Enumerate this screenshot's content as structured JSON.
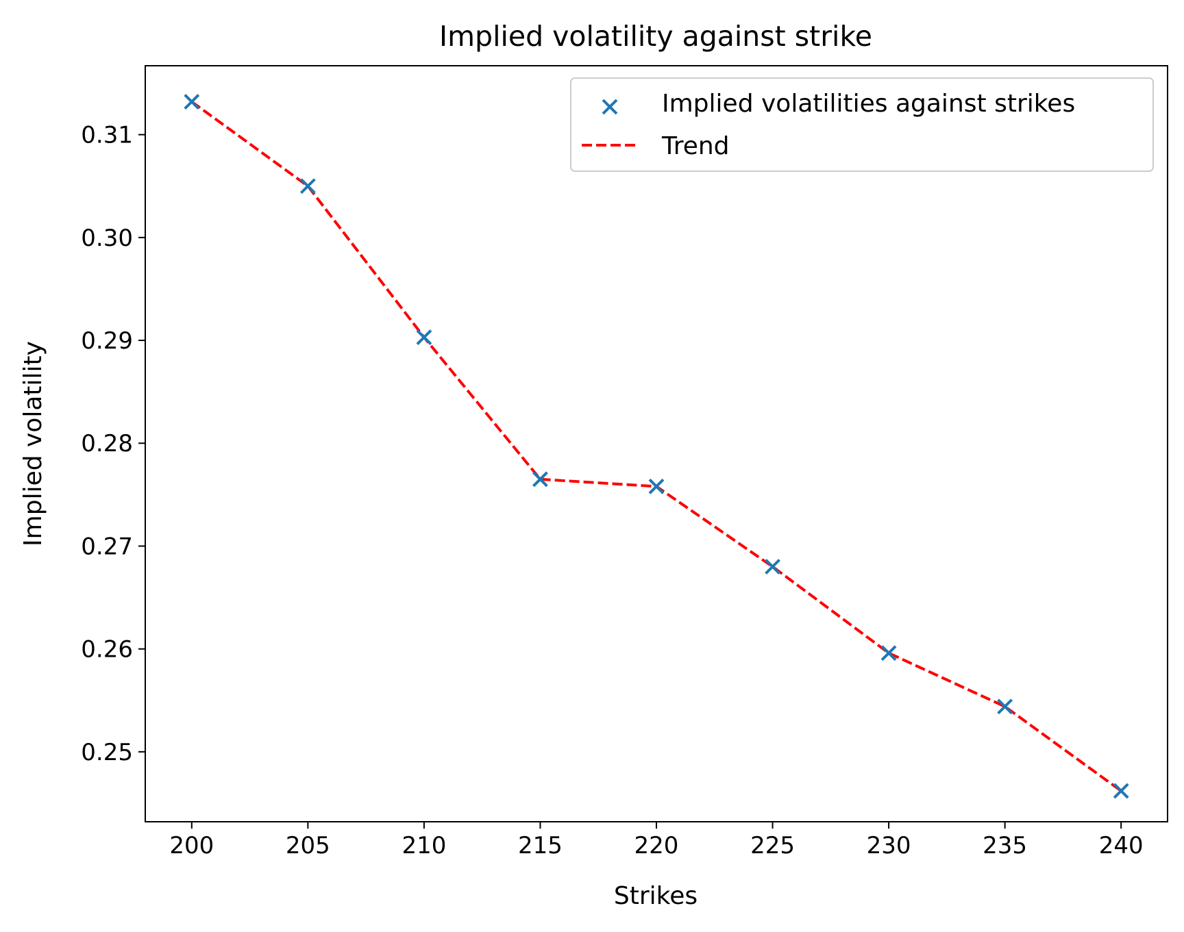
{
  "chart_data": {
    "type": "scatter",
    "title": "Implied volatility against strike",
    "xlabel": "Strikes",
    "ylabel": "Implied volatility",
    "xlim": [
      198,
      242
    ],
    "ylim": [
      0.2432,
      0.3167
    ],
    "xticks": [
      "200",
      "205",
      "210",
      "215",
      "220",
      "225",
      "230",
      "235",
      "240"
    ],
    "yticks": [
      "0.25",
      "0.26",
      "0.27",
      "0.28",
      "0.29",
      "0.30",
      "0.31"
    ],
    "grid": false,
    "legend_position": "top-right",
    "x": [
      200,
      205,
      210,
      215,
      220,
      225,
      230,
      235,
      240
    ],
    "series": [
      {
        "name": "Implied volatilities against strikes",
        "type": "scatter",
        "marker": "x",
        "color": "#1f77b4",
        "values": [
          0.3132,
          0.305,
          0.2903,
          0.2765,
          0.2758,
          0.268,
          0.2596,
          0.2544,
          0.2462
        ]
      },
      {
        "name": "Trend",
        "type": "line",
        "line_style": "dashed",
        "color": "#ff0000",
        "values": [
          0.3132,
          0.305,
          0.2903,
          0.2765,
          0.2758,
          0.268,
          0.2596,
          0.2544,
          0.2462
        ]
      }
    ]
  }
}
